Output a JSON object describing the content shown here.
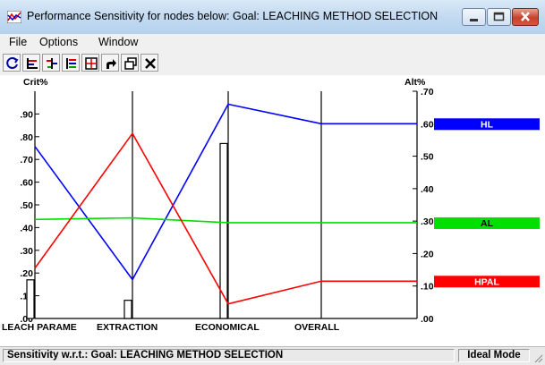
{
  "window": {
    "title": "Performance Sensitivity for nodes below: Goal: LEACHING METHOD SELECTION",
    "icon": "app-chart-icon",
    "controls": [
      "minimize-icon",
      "maximize-icon",
      "close-icon"
    ]
  },
  "menu": {
    "items": [
      "File",
      "Options",
      "Window"
    ]
  },
  "toolbar": {
    "tools": [
      "refresh-icon",
      "bar-chart-icon",
      "criteria-icon",
      "list-icon",
      "grid-icon",
      "arrow-icon",
      "windows-icon",
      "close-x-icon"
    ]
  },
  "chart_data": {
    "type": "line",
    "left_axis_title": "Crit%",
    "right_axis_title": "Alt%",
    "left_ticks": [
      ".00",
      ".10",
      ".20",
      ".30",
      ".40",
      ".50",
      ".60",
      ".70",
      ".80",
      ".90"
    ],
    "right_ticks": [
      ".00",
      ".10",
      ".20",
      ".30",
      ".40",
      ".50",
      ".60",
      ".70"
    ],
    "ylim_left": [
      0,
      1.0
    ],
    "ylim_right": [
      0,
      0.7
    ],
    "categories": [
      "LEACH PARAME",
      "EXTRACTION",
      "ECONOMICAL",
      "OVERALL"
    ],
    "criteria_bars": [
      0.17,
      0.08,
      0.77
    ],
    "series": [
      {
        "name": "HL",
        "color": "#0000ff",
        "values": [
          0.53,
          0.12,
          0.66,
          0.6
        ],
        "end": 0.6
      },
      {
        "name": "AL",
        "color": "#00e000",
        "values": [
          0.305,
          0.31,
          0.295,
          0.295
        ],
        "end": 0.295
      },
      {
        "name": "HPAL",
        "color": "#ff0000",
        "values": [
          0.155,
          0.57,
          0.045,
          0.115
        ],
        "end": 0.115
      }
    ],
    "grid": false
  },
  "status": {
    "left": "Sensitivity w.r.t.: Goal: LEACHING METHOD SELECTION",
    "right": "Ideal Mode"
  }
}
